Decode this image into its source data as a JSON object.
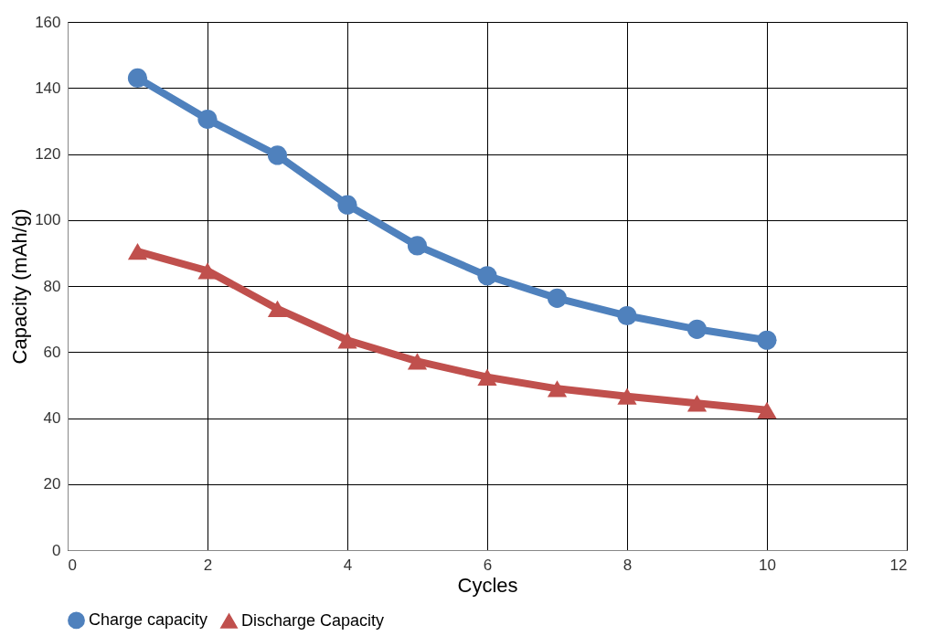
{
  "chart_data": {
    "type": "line",
    "xlabel": "Cycles",
    "ylabel": "Capacity (mAh/g)",
    "x": [
      1,
      2,
      3,
      4,
      5,
      6,
      7,
      8,
      9,
      10
    ],
    "series": [
      {
        "name": "Charge capacity",
        "color": "#4f81bd",
        "marker": "circle",
        "values": [
          143,
          130.5,
          119.6,
          104.6,
          92.2,
          83.1,
          76.3,
          71.0,
          66.9,
          63.6
        ]
      },
      {
        "name": "Discharge Capacity",
        "color": "#c0504d",
        "marker": "triangle",
        "values": [
          90.5,
          84.6,
          73.1,
          63.6,
          57.2,
          52.4,
          48.9,
          46.6,
          44.5,
          42.4
        ]
      }
    ],
    "xlim": [
      0,
      12
    ],
    "xticks": [
      0,
      2,
      4,
      6,
      8,
      10,
      12
    ],
    "ylim": [
      0,
      160
    ],
    "yticks": [
      0,
      20,
      40,
      60,
      80,
      100,
      120,
      140,
      160
    ],
    "grid": true,
    "legend": "bottom",
    "line_style": "solid"
  }
}
